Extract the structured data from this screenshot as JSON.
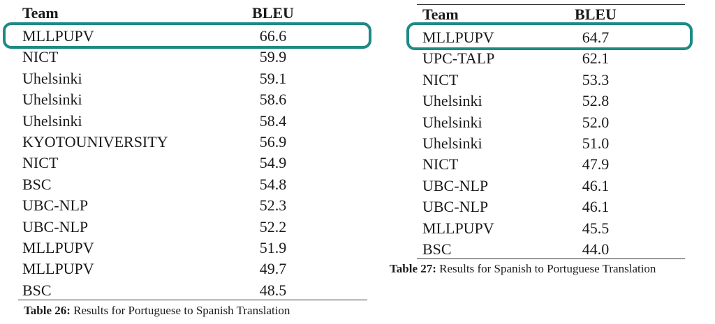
{
  "left_table": {
    "header": {
      "team": "Team",
      "bleu": "BLEU"
    },
    "rows": [
      {
        "team": "MLLPUPV",
        "bleu": "66.6"
      },
      {
        "team": "NICT",
        "bleu": "59.9"
      },
      {
        "team": "Uhelsinki",
        "bleu": "59.1"
      },
      {
        "team": "Uhelsinki",
        "bleu": "58.6"
      },
      {
        "team": "Uhelsinki",
        "bleu": "58.4"
      },
      {
        "team": "KYOTOUNIVERSITY",
        "bleu": "56.9"
      },
      {
        "team": "NICT",
        "bleu": "54.9"
      },
      {
        "team": "BSC",
        "bleu": "54.8"
      },
      {
        "team": "UBC-NLP",
        "bleu": "52.3"
      },
      {
        "team": "UBC-NLP",
        "bleu": "52.2"
      },
      {
        "team": "MLLPUPV",
        "bleu": "51.9"
      },
      {
        "team": "MLLPUPV",
        "bleu": "49.7"
      },
      {
        "team": "BSC",
        "bleu": "48.5"
      }
    ],
    "caption_label": "Table 26:",
    "caption_text": "Results for Portuguese to Spanish Translation"
  },
  "right_table": {
    "header": {
      "team": "Team",
      "bleu": "BLEU"
    },
    "rows": [
      {
        "team": "MLLPUPV",
        "bleu": "64.7"
      },
      {
        "team": "UPC-TALP",
        "bleu": "62.1"
      },
      {
        "team": "NICT",
        "bleu": "53.3"
      },
      {
        "team": "Uhelsinki",
        "bleu": "52.8"
      },
      {
        "team": "Uhelsinki",
        "bleu": "52.0"
      },
      {
        "team": "Uhelsinki",
        "bleu": "51.0"
      },
      {
        "team": "NICT",
        "bleu": "47.9"
      },
      {
        "team": "UBC-NLP",
        "bleu": "46.1"
      },
      {
        "team": "UBC-NLP",
        "bleu": "46.1"
      },
      {
        "team": "MLLPUPV",
        "bleu": "45.5"
      },
      {
        "team": "BSC",
        "bleu": "44.0"
      }
    ],
    "caption_label": "Table 27:",
    "caption_text": "Results for Spanish to Portuguese Translation"
  },
  "highlight_color": "#1e8a86"
}
